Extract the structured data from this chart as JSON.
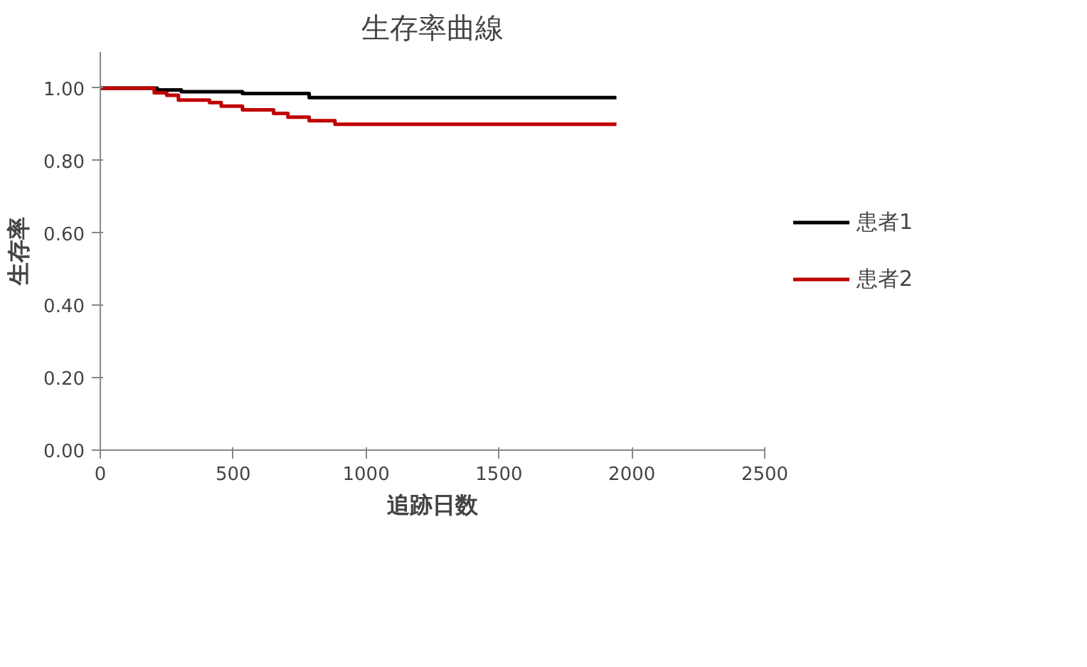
{
  "chart_data": {
    "type": "step",
    "title": "生存率曲線",
    "xlabel": "追跡日数",
    "ylabel": "生存率",
    "xlim": [
      0,
      2500
    ],
    "xticks": [
      0,
      500,
      1000,
      1500,
      2000,
      2500
    ],
    "ylim": [
      0,
      1.1
    ],
    "yticks": [
      {
        "value": 0,
        "label": "0.00"
      },
      {
        "value": 0.2,
        "label": "0.20"
      },
      {
        "value": 0.4,
        "label": "0.40"
      },
      {
        "value": 0.6,
        "label": "0.60"
      },
      {
        "value": 0.8,
        "label": "0.80"
      },
      {
        "value": 1.0,
        "label": "1.00"
      }
    ],
    "grid": false,
    "legend": "right",
    "series": [
      {
        "name": "患者1",
        "color": "#000000",
        "x": [
          0,
          214,
          305,
          535,
          786,
          1942
        ],
        "values": [
          1.0,
          0.995,
          0.99,
          0.985,
          0.974,
          0.974
        ]
      },
      {
        "name": "患者2",
        "color": "#c00000",
        "x": [
          0,
          203,
          250,
          294,
          411,
          455,
          535,
          652,
          706,
          786,
          883,
          1942
        ],
        "values": [
          1.0,
          0.987,
          0.98,
          0.967,
          0.96,
          0.95,
          0.94,
          0.93,
          0.92,
          0.91,
          0.9,
          0.9
        ]
      }
    ]
  }
}
